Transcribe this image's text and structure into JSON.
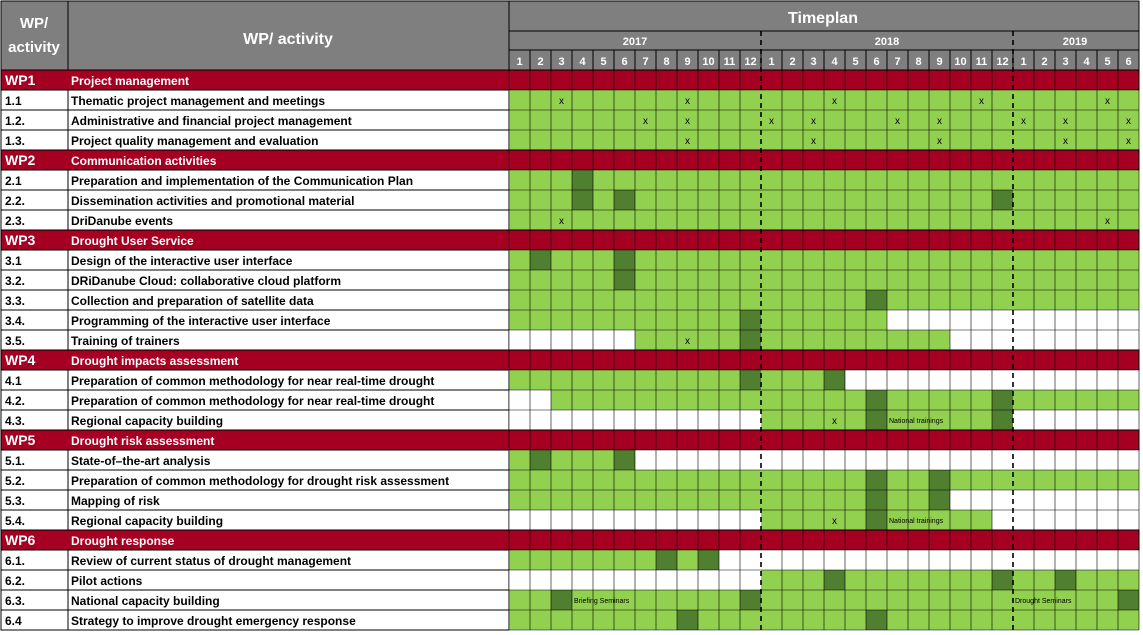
{
  "header": {
    "wp_col": [
      "WP/",
      "activity"
    ],
    "activity_col": "WP/ activity",
    "timeplan": "Timeplan",
    "years": [
      "2017",
      "2018",
      "2019"
    ],
    "months": [
      "1",
      "2",
      "3",
      "4",
      "5",
      "6",
      "7",
      "8",
      "9",
      "10",
      "11",
      "12",
      "1",
      "2",
      "3",
      "4",
      "5",
      "6",
      "7",
      "8",
      "9",
      "10",
      "11",
      "12",
      "1",
      "2",
      "3",
      "4",
      "5",
      "6"
    ]
  },
  "colors": {
    "header_grey": "#7f7f7f",
    "wp_red": "#a50021",
    "bar_light": "#92d050",
    "bar_dark": "#4f7f2f",
    "grid": "#000000"
  },
  "rows": [
    {
      "type": "wp",
      "code": "WP1",
      "name": "Project management"
    },
    {
      "type": "act",
      "code": "1.1",
      "name": "Thematic project management and meetings",
      "bars": [
        [
          1,
          30
        ]
      ],
      "dark": [],
      "marks": [
        3,
        9,
        16,
        23,
        29
      ]
    },
    {
      "type": "act",
      "code": "1.2.",
      "name": "Administrative and financial project management",
      "bars": [
        [
          1,
          30
        ]
      ],
      "dark": [],
      "marks": [
        7,
        9,
        13,
        15,
        19,
        21,
        25,
        27,
        30
      ]
    },
    {
      "type": "act",
      "code": "1.3.",
      "name": "Project quality management and evaluation",
      "bars": [
        [
          1,
          30
        ]
      ],
      "dark": [],
      "marks": [
        9,
        15,
        21,
        27,
        30
      ]
    },
    {
      "type": "wp",
      "code": "WP2",
      "name": "Communication activities"
    },
    {
      "type": "act",
      "code": "2.1",
      "name": "Preparation and implementation of the Communication Plan",
      "bars": [
        [
          1,
          30
        ]
      ],
      "dark": [
        4
      ],
      "marks": []
    },
    {
      "type": "act",
      "code": "2.2.",
      "name": "Dissemination activities and promotional material",
      "bars": [
        [
          1,
          30
        ]
      ],
      "dark": [
        4,
        6,
        24
      ],
      "marks": []
    },
    {
      "type": "act",
      "code": "2.3.",
      "name": "DriDanube events",
      "bars": [
        [
          1,
          30
        ]
      ],
      "dark": [],
      "marks": [
        3,
        29
      ]
    },
    {
      "type": "wp",
      "code": "WP3",
      "name": "Drought User Service"
    },
    {
      "type": "act",
      "code": "3.1",
      "name": "Design of the interactive user interface",
      "bars": [
        [
          1,
          30
        ]
      ],
      "dark": [
        2,
        6
      ],
      "marks": []
    },
    {
      "type": "act",
      "code": "3.2.",
      "name": "DRiDanube Cloud: collaborative cloud platform",
      "bars": [
        [
          1,
          30
        ]
      ],
      "dark": [
        6
      ],
      "marks": []
    },
    {
      "type": "act",
      "code": "3.3.",
      "name": "Collection and preparation of satellite data",
      "bars": [
        [
          1,
          30
        ]
      ],
      "dark": [
        18
      ],
      "marks": []
    },
    {
      "type": "act",
      "code": "3.4.",
      "name": "Programming of the interactive user interface",
      "bars": [
        [
          1,
          18
        ]
      ],
      "dark": [
        12
      ],
      "marks": []
    },
    {
      "type": "act",
      "code": "3.5.",
      "name": "Training of trainers",
      "bars": [
        [
          7,
          21
        ]
      ],
      "dark": [
        12
      ],
      "marks": [
        9
      ]
    },
    {
      "type": "wp",
      "code": "WP4",
      "name": "Drought impacts assessment"
    },
    {
      "type": "act",
      "code": "4.1",
      "name": "Preparation of common methodology for near real-time drought",
      "bars": [
        [
          1,
          16
        ]
      ],
      "dark": [
        12,
        16
      ],
      "marks": []
    },
    {
      "type": "act",
      "code": "4.2.",
      "name": "Preparation of common methodology for near real-time drought",
      "bars": [
        [
          3,
          30
        ]
      ],
      "dark": [
        18,
        24
      ],
      "marks": []
    },
    {
      "type": "act",
      "code": "4.3.",
      "name": "Regional capacity building",
      "bars": [
        [
          13,
          24
        ]
      ],
      "dark": [
        18,
        24
      ],
      "marks": [
        16
      ],
      "label": {
        "text": "National trainings",
        "col": 19
      }
    },
    {
      "type": "wp",
      "code": "WP5",
      "name": "Drought risk assessment"
    },
    {
      "type": "act",
      "code": "5.1.",
      "name": "State-of–the-art analysis",
      "bars": [
        [
          1,
          6
        ]
      ],
      "dark": [
        2,
        6
      ],
      "marks": []
    },
    {
      "type": "act",
      "code": "5.2.",
      "name": "Preparation of common methodology for drought risk assessment",
      "bars": [
        [
          1,
          30
        ]
      ],
      "dark": [
        18,
        21
      ],
      "marks": []
    },
    {
      "type": "act",
      "code": "5.3.",
      "name": "Mapping of risk",
      "bars": [
        [
          1,
          21
        ]
      ],
      "dark": [
        18,
        21
      ],
      "marks": []
    },
    {
      "type": "act",
      "code": "5.4.",
      "name": "Regional capacity building",
      "bars": [
        [
          13,
          23
        ]
      ],
      "dark": [
        18
      ],
      "marks": [
        16
      ],
      "label": {
        "text": "National trainings",
        "col": 19
      }
    },
    {
      "type": "wp",
      "code": "WP6",
      "name": "Drought response"
    },
    {
      "type": "act",
      "code": "6.1.",
      "name": "Review of current status of drought management",
      "bars": [
        [
          1,
          10
        ]
      ],
      "dark": [
        8,
        10
      ],
      "marks": []
    },
    {
      "type": "act",
      "code": "6.2.",
      "name": "Pilot actions",
      "bars": [
        [
          13,
          30
        ]
      ],
      "dark": [
        16,
        24,
        27
      ],
      "marks": []
    },
    {
      "type": "act",
      "code": "6.3.",
      "name": "National capacity building",
      "bars": [
        [
          1,
          30
        ]
      ],
      "dark": [
        3,
        12,
        30
      ],
      "marks": [],
      "label": {
        "text": "Briefing Seminars",
        "col": 4
      },
      "label2": {
        "text": "Drought Seminars",
        "col": 25
      }
    },
    {
      "type": "act",
      "code": "6.4",
      "name": "Strategy to improve drought emergency response",
      "bars": [
        [
          1,
          30
        ]
      ],
      "dark": [
        9,
        18
      ],
      "marks": []
    }
  ]
}
